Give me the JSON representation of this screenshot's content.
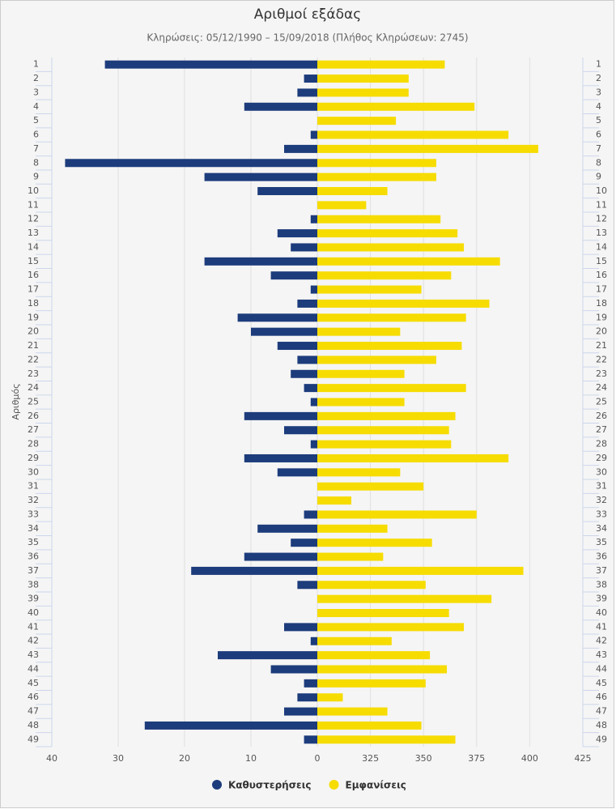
{
  "chart_data": {
    "type": "bar",
    "orientation": "horizontal",
    "title": "Αριθμοί εξάδας",
    "subtitle": "Κληρώσεις: 05/12/1990 – 15/09/2018 (Πλήθος Κληρώσεων: 2745)",
    "y_label": "Αριθμός",
    "categories": [
      "1",
      "2",
      "3",
      "4",
      "5",
      "6",
      "7",
      "8",
      "9",
      "10",
      "11",
      "12",
      "13",
      "14",
      "15",
      "16",
      "17",
      "18",
      "19",
      "20",
      "21",
      "22",
      "23",
      "24",
      "25",
      "26",
      "27",
      "28",
      "29",
      "30",
      "31",
      "32",
      "33",
      "34",
      "35",
      "36",
      "37",
      "38",
      "39",
      "40",
      "41",
      "42",
      "43",
      "44",
      "45",
      "46",
      "47",
      "48",
      "49"
    ],
    "xlim": [
      40,
      0
    ],
    "xticks": [
      40,
      30,
      20,
      10,
      0
    ],
    "x2lim": [
      300,
      425
    ],
    "x2ticks": [
      325,
      350,
      375,
      400,
      425
    ],
    "grid": true,
    "legend": "bottom",
    "series": [
      {
        "name": "Καθυστερήσεις",
        "color": "#1d3c7c",
        "axis": "x",
        "values": [
          32,
          2,
          3,
          11,
          0,
          1,
          5,
          38,
          17,
          9,
          0,
          1,
          6,
          4,
          17,
          7,
          1,
          3,
          12,
          10,
          6,
          3,
          4,
          2,
          1,
          11,
          5,
          1,
          11,
          6,
          0,
          0,
          2,
          9,
          4,
          11,
          19,
          3,
          0,
          0,
          5,
          1,
          15,
          7,
          2,
          3,
          5,
          26,
          2
        ]
      },
      {
        "name": "Εμφανίσεις",
        "color": "#f6dc00",
        "axis": "x2",
        "values": [
          360,
          343,
          343,
          374,
          337,
          390,
          404,
          356,
          356,
          333,
          323,
          358,
          366,
          369,
          386,
          363,
          349,
          381,
          370,
          339,
          368,
          356,
          341,
          370,
          341,
          365,
          362,
          363,
          390,
          339,
          350,
          316,
          375,
          333,
          354,
          331,
          397,
          351,
          382,
          362,
          369,
          335,
          353,
          361,
          351,
          312,
          333,
          349,
          365
        ]
      }
    ]
  }
}
